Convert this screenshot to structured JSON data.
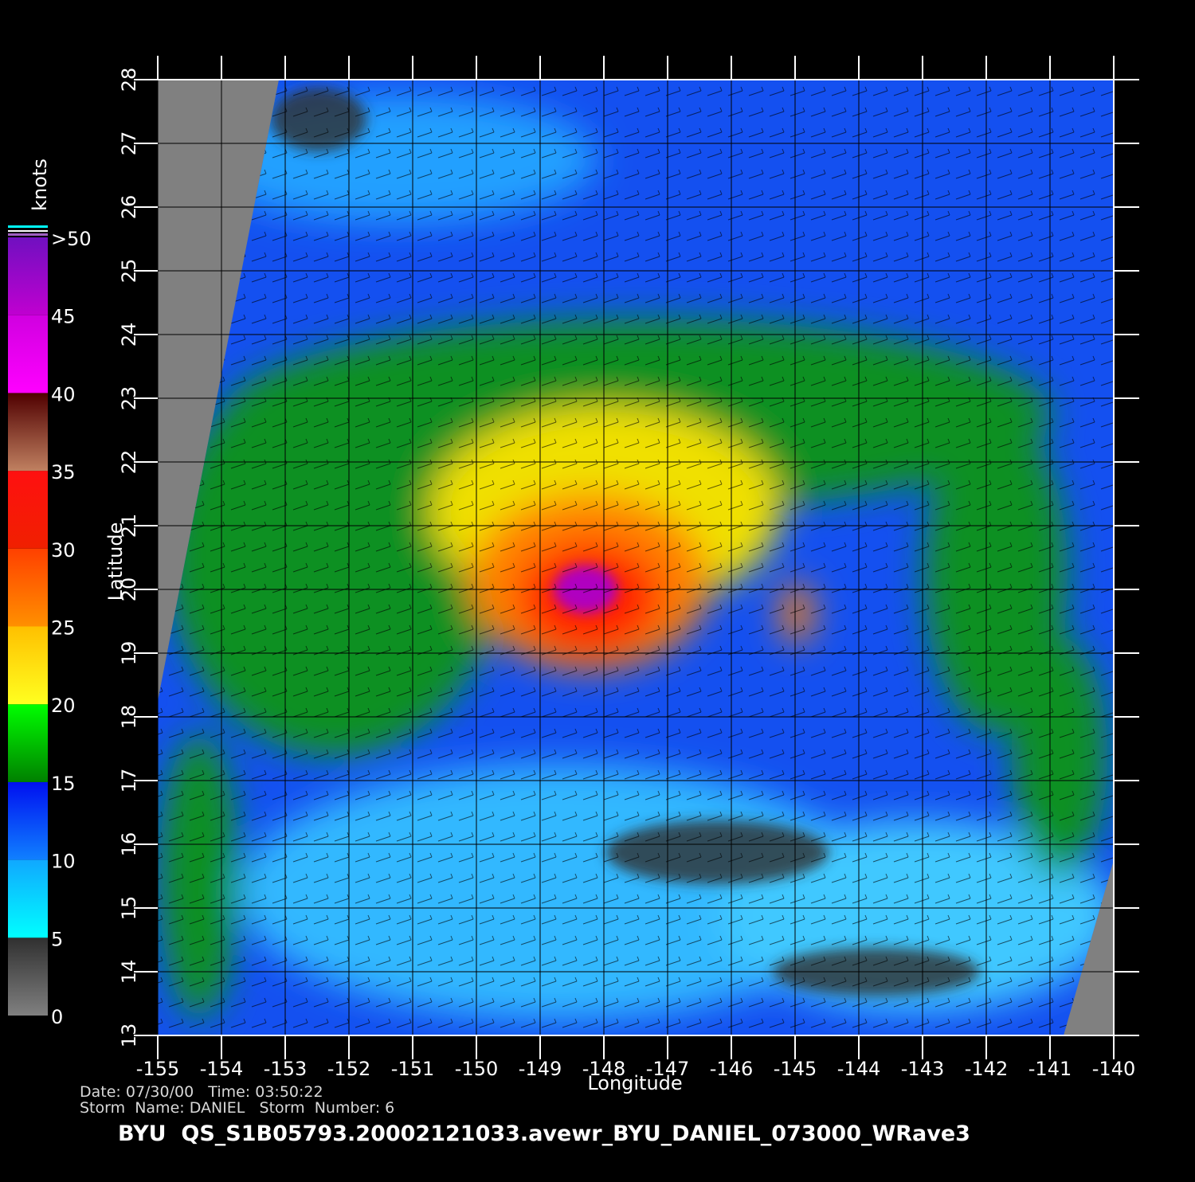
{
  "chart_data": {
    "type": "map",
    "x_label": "Longitude",
    "y_label": "Latitude",
    "xlim": [
      -155,
      -140
    ],
    "xticks": [
      -155,
      -154,
      -153,
      -152,
      -151,
      -150,
      -149,
      -148,
      -147,
      -146,
      -145,
      -144,
      -143,
      -142,
      -141,
      -140
    ],
    "ylim": [
      13,
      28
    ],
    "yticks": [
      13,
      14,
      15,
      16,
      17,
      18,
      19,
      20,
      21,
      22,
      23,
      24,
      25,
      26,
      27,
      28
    ],
    "grid": true,
    "colorbar": {
      "label": "knots",
      "lim": [
        0,
        50
      ],
      "ticks": [
        0,
        5,
        10,
        15,
        20,
        25,
        30,
        35,
        40,
        45,
        {
          "value": 50,
          "label": ">50"
        }
      ],
      "colors": [
        [
          "#808080",
          "#303030"
        ],
        [
          "#00ffff",
          "#10a8ff"
        ],
        [
          "#1080ff",
          "#0010f0"
        ],
        [
          "#008000",
          "#00ff00"
        ],
        [
          "#ffff20",
          "#ffc000"
        ],
        [
          "#ff9000",
          "#ff4000"
        ],
        [
          "#f02000",
          "#ff1010"
        ],
        [
          "#c08060",
          "#500000"
        ],
        [
          "#ff00ff",
          "#d000e0"
        ],
        [
          "#c000d0",
          "#7010c0"
        ]
      ]
    },
    "date_line": "Date: 07/30/00   Time: 03:50:22",
    "storm_line": "Storm  Name: DANIEL   Storm  Number: 6",
    "file_line": "BYU  QS_S1B05793.20002121033.avewr_BYU_DANIEL_073000_WRave3"
  }
}
